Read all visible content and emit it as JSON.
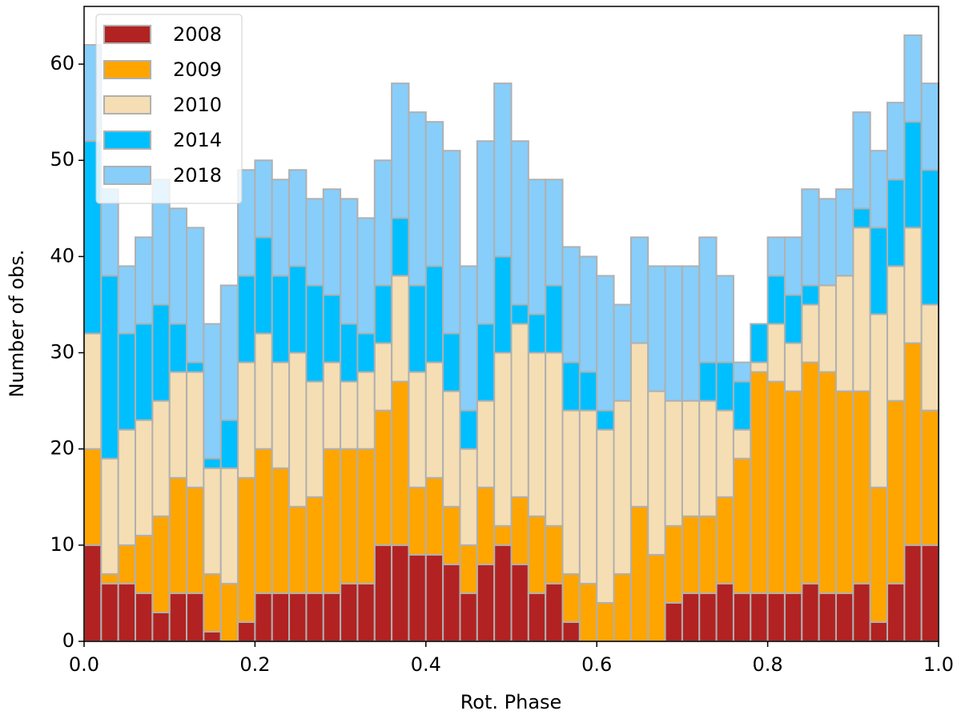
{
  "chart_data": {
    "type": "histogram",
    "stacked": true,
    "xlabel": "Rot. Phase",
    "ylabel": "Number of obs.",
    "bins": [
      0,
      0.02,
      0.04,
      0.06,
      0.08,
      0.1,
      0.12,
      0.14,
      0.16,
      0.18,
      0.2,
      0.22,
      0.24,
      0.26,
      0.28,
      0.3,
      0.32,
      0.34,
      0.36,
      0.38,
      0.4,
      0.42,
      0.44,
      0.46,
      0.48,
      0.5,
      0.52,
      0.54,
      0.56,
      0.58,
      0.6,
      0.62,
      0.64,
      0.66,
      0.68,
      0.7,
      0.72,
      0.74,
      0.76,
      0.78,
      0.8,
      0.82,
      0.84,
      0.86,
      0.88,
      0.9,
      0.92,
      0.94,
      0.96,
      0.98,
      1
    ],
    "edgecolor": "#b0b0b0",
    "series": [
      {
        "name": "2008",
        "color": "#b22222",
        "values": [
          10,
          6,
          6,
          5,
          3,
          5,
          5,
          1,
          0,
          2,
          5,
          5,
          5,
          5,
          5,
          6,
          6,
          10,
          10,
          9,
          9,
          8,
          5,
          8,
          10,
          8,
          5,
          6,
          2,
          0,
          0,
          0,
          0,
          0,
          4,
          5,
          5,
          6,
          5,
          5,
          5,
          5,
          6,
          5,
          5,
          6,
          2,
          6,
          10,
          10
        ]
      },
      {
        "name": "2009",
        "color": "#ffa500",
        "values": [
          10,
          1,
          4,
          6,
          10,
          12,
          11,
          6,
          6,
          15,
          15,
          13,
          9,
          10,
          15,
          14,
          14,
          14,
          17,
          7,
          8,
          6,
          5,
          8,
          2,
          7,
          8,
          6,
          5,
          6,
          4,
          7,
          14,
          9,
          8,
          8,
          8,
          9,
          14,
          23,
          22,
          21,
          23,
          23,
          21,
          20,
          14,
          19,
          21,
          14
        ]
      },
      {
        "name": "2010",
        "color": "#f5deb3",
        "values": [
          12,
          12,
          12,
          12,
          12,
          11,
          12,
          11,
          12,
          12,
          12,
          11,
          16,
          12,
          9,
          7,
          8,
          7,
          11,
          12,
          12,
          12,
          10,
          9,
          18,
          18,
          17,
          18,
          17,
          18,
          18,
          18,
          17,
          17,
          13,
          12,
          12,
          9,
          3,
          1,
          6,
          5,
          6,
          9,
          12,
          17,
          18,
          14,
          12,
          11
        ]
      },
      {
        "name": "2014",
        "color": "#00bfff",
        "values": [
          20,
          19,
          10,
          10,
          10,
          5,
          1,
          1,
          5,
          9,
          10,
          9,
          9,
          10,
          7,
          6,
          4,
          6,
          6,
          9,
          10,
          6,
          4,
          8,
          10,
          2,
          4,
          7,
          5,
          4,
          2,
          0,
          0,
          0,
          0,
          0,
          4,
          5,
          5,
          4,
          5,
          5,
          2,
          0,
          0,
          2,
          9,
          9,
          11,
          14
        ]
      },
      {
        "name": "2018",
        "color": "#87cefa",
        "values": [
          10,
          9,
          7,
          9,
          13,
          12,
          14,
          14,
          14,
          11,
          8,
          10,
          10,
          9,
          11,
          13,
          12,
          13,
          14,
          18,
          15,
          19,
          15,
          19,
          18,
          17,
          14,
          11,
          12,
          12,
          14,
          10,
          11,
          13,
          14,
          14,
          13,
          9,
          2,
          0,
          4,
          6,
          10,
          9,
          9,
          10,
          8,
          8,
          9,
          9
        ]
      }
    ],
    "xlim": [
      0,
      1
    ],
    "ylim": [
      0,
      66
    ],
    "xticks": [
      {
        "value": 0,
        "label": "0.0"
      },
      0.2,
      0.4,
      0.6,
      0.8,
      {
        "value": 1,
        "label": "1.0"
      }
    ],
    "yticks": [
      0,
      10,
      20,
      30,
      40,
      50,
      60
    ],
    "legend": "upper left"
  }
}
